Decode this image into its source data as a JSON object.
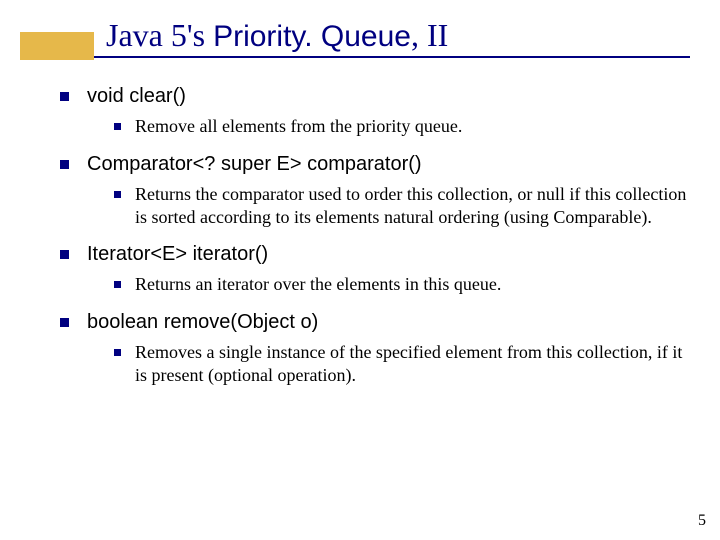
{
  "title": {
    "prefix": "Java 5's ",
    "code": "Priority. Queue",
    "suffix": ", II",
    "accent_color": "#e6b84a",
    "text_color": "#000080",
    "underline_color": "#000080",
    "title_fontsize": 32
  },
  "bullet_color": "#000080",
  "l1_fontsize": 20,
  "l2_fontsize": 18,
  "items": [
    {
      "signature": "void clear()",
      "desc": "Remove all elements from the priority queue."
    },
    {
      "signature": "Comparator<? super E> comparator()",
      "desc": "Returns the comparator used to order this collection, or null if this collection is sorted according to its elements natural ordering (using Comparable)."
    },
    {
      "signature": "Iterator<E> iterator()",
      "desc": "Returns an iterator over the elements in this queue."
    },
    {
      "signature": "boolean remove(Object o)",
      "desc": "Removes a single instance of the specified element from this collection, if it is present (optional operation)."
    }
  ],
  "page_number": "5"
}
